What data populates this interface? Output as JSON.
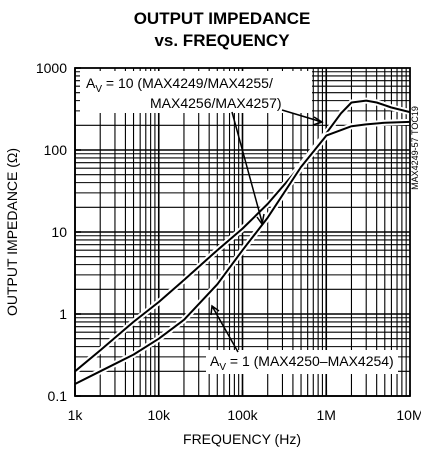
{
  "chart_data": {
    "type": "line",
    "title": "OUTPUT IMPEDANCE",
    "subtitle": "vs. FREQUENCY",
    "xlabel": "FREQUENCY (Hz)",
    "ylabel": "OUTPUT IMPEDANCE (Ω)",
    "x_scale": "log",
    "y_scale": "log",
    "xlim": [
      1000,
      10000000
    ],
    "ylim": [
      0.1,
      1000
    ],
    "x_ticks": [
      1000,
      10000,
      100000,
      1000000,
      10000000
    ],
    "x_tick_labels": [
      "1k",
      "10k",
      "100k",
      "1M",
      "10M"
    ],
    "y_ticks": [
      0.1,
      1,
      10,
      100,
      1000
    ],
    "y_tick_labels": [
      "0.1",
      "1",
      "10",
      "100",
      "1000"
    ],
    "grid": true,
    "side_tag": "MAX4249-57 TOC19",
    "series": [
      {
        "name": "AV = 10 (MAX4249/MAX4255/ MAX4256/MAX4257)",
        "x": [
          1000,
          2000,
          5000,
          10000,
          20000,
          50000,
          100000,
          200000,
          500000,
          1000000,
          1500000,
          2000000,
          3000000,
          4000000,
          6000000,
          10000000
        ],
        "y": [
          0.2,
          0.36,
          0.8,
          1.4,
          2.6,
          6,
          11,
          22,
          65,
          160,
          280,
          380,
          400,
          380,
          330,
          290
        ]
      },
      {
        "name": "AV = 1 (MAX4250–MAX4254)",
        "x": [
          1000,
          2000,
          5000,
          10000,
          20000,
          50000,
          100000,
          200000,
          500000,
          1000000,
          2000000,
          3000000,
          5000000,
          10000000
        ],
        "y": [
          0.14,
          0.2,
          0.32,
          0.5,
          0.85,
          2.3,
          6,
          15,
          62,
          150,
          195,
          205,
          215,
          220
        ]
      }
    ],
    "annotations": [
      {
        "main": "A",
        "sub": "V",
        "line1": " = 10 (MAX4249/MAX4255/",
        "line2": "MAX4256/MAX4257)"
      },
      {
        "main": "A",
        "sub": "V",
        "line1": " = 1 (MAX4250–MAX4254)"
      }
    ]
  }
}
